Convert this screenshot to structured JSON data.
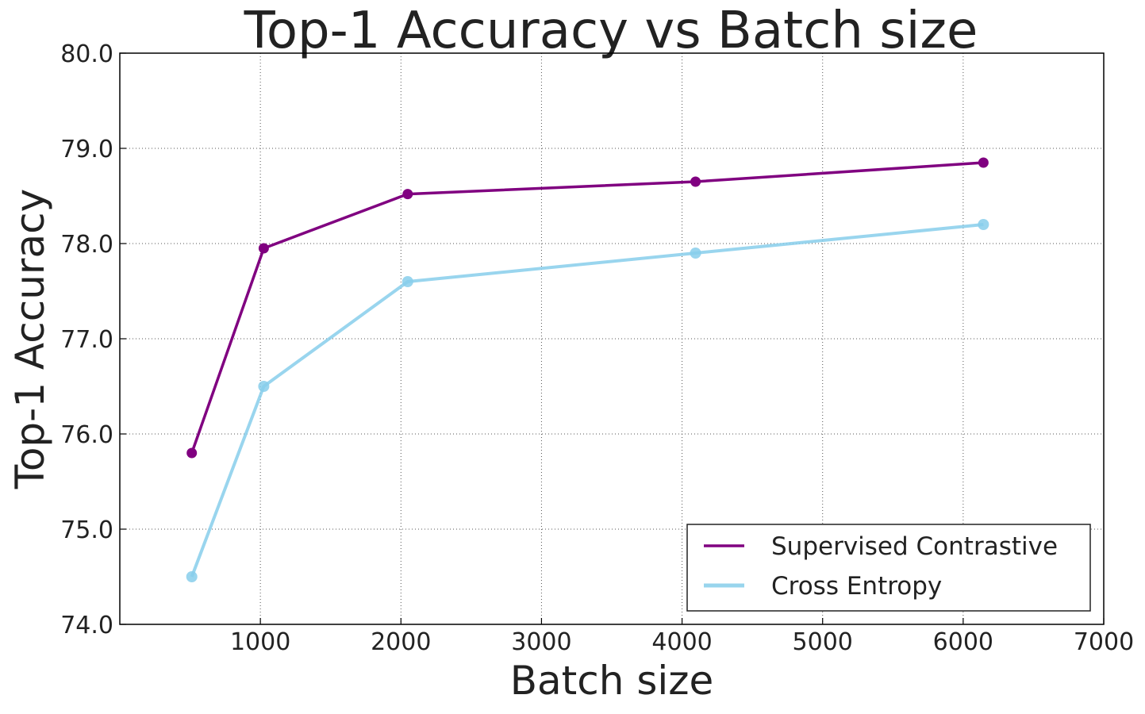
{
  "chart_data": {
    "type": "line",
    "title": "Top-1 Accuracy vs Batch size",
    "xlabel": "Batch size",
    "ylabel": "Top-1 Accuracy",
    "xlim": [
      0,
      7000
    ],
    "ylim": [
      74.0,
      80.0
    ],
    "xticks": [
      1000,
      2000,
      3000,
      4000,
      5000,
      6000,
      7000
    ],
    "xtick_labels": [
      "1000",
      "2000",
      "3000",
      "4000",
      "5000",
      "6000",
      "7000"
    ],
    "yticks": [
      74.0,
      75.0,
      76.0,
      77.0,
      78.0,
      79.0,
      80.0
    ],
    "ytick_labels": [
      "74.0",
      "75.0",
      "76.0",
      "77.0",
      "78.0",
      "79.0",
      "80.0"
    ],
    "grid": true,
    "legend_position": "bottom-right",
    "x": [
      512,
      1024,
      2048,
      4096,
      6144
    ],
    "series": [
      {
        "name": "Supervised Contrastive",
        "color": "#800080",
        "values": [
          75.8,
          77.95,
          78.52,
          78.65,
          78.85
        ]
      },
      {
        "name": "Cross Entropy",
        "color": "#87CEEB",
        "values": [
          74.5,
          76.5,
          77.6,
          77.9,
          78.2
        ]
      }
    ]
  }
}
